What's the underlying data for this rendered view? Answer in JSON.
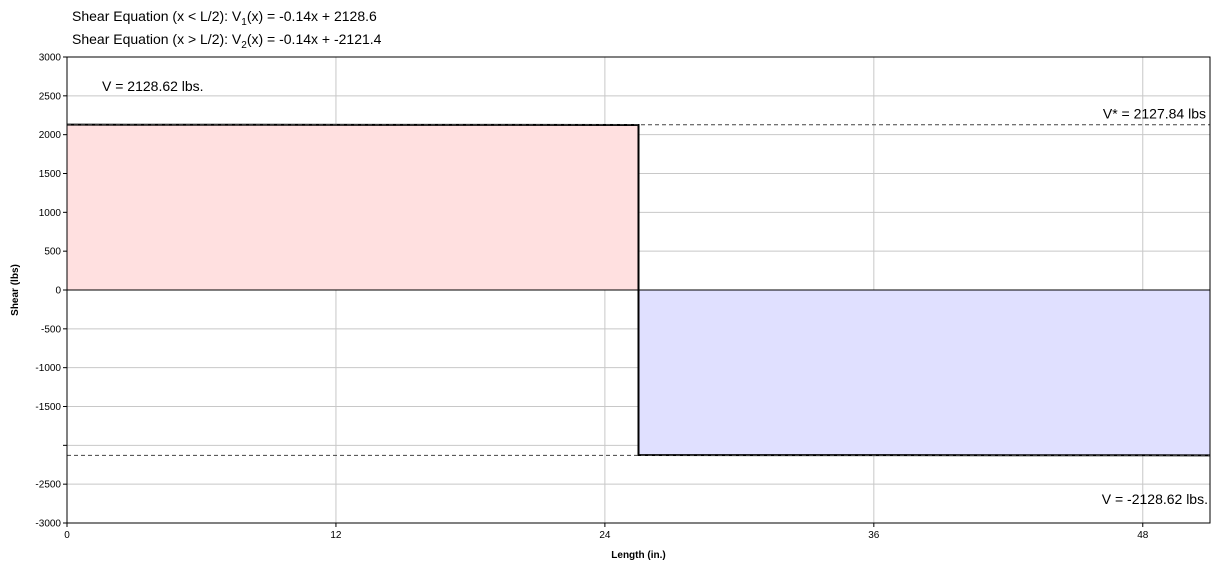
{
  "header": {
    "eq1_prefix": "Shear Equation  (x < L/2):  V",
    "eq1_sub": "1",
    "eq1_rest": "(x) = -0.14x + 2128.6",
    "eq2_prefix": "Shear Equation  (x > L/2):  V",
    "eq2_sub": "2",
    "eq2_rest": "(x) = -0.14x + -2121.4"
  },
  "chart_data": {
    "type": "area",
    "xlabel": "Length (in.)",
    "ylabel": "Shear (lbs)",
    "xlim": [
      0,
      51
    ],
    "ylim": [
      -3000,
      3000
    ],
    "x_ticks": [
      0,
      12,
      24,
      36,
      48
    ],
    "y_ticks": [
      {
        "value": 3000,
        "label": "3000"
      },
      {
        "value": 2500,
        "label": "2500"
      },
      {
        "value": 2000,
        "label": "2000"
      },
      {
        "value": 1500,
        "label": "1500"
      },
      {
        "value": 1000,
        "label": "1000"
      },
      {
        "value": 500,
        "label": "500"
      },
      {
        "value": 0,
        "label": "0"
      },
      {
        "value": -500,
        "label": "-500"
      },
      {
        "value": -1000,
        "label": "-1000"
      },
      {
        "value": -1500,
        "label": "-1500"
      },
      {
        "value": -2000,
        "label": ""
      },
      {
        "value": -2500,
        "label": "-2500"
      },
      {
        "value": -3000,
        "label": "-3000"
      }
    ],
    "grid": true,
    "series": [
      {
        "x": [
          0,
          25.5
        ],
        "y": [
          2128.6,
          2125.0
        ],
        "color": "#ffe0e0"
      },
      {
        "x": [
          25.5,
          51
        ],
        "y": [
          -2125.0,
          -2128.6
        ],
        "color": "#e0e0ff"
      }
    ],
    "reference_lines": [
      {
        "value": 2127.84,
        "style": "dashed"
      },
      {
        "value": -2128.62,
        "style": "dashed"
      }
    ],
    "annotations": [
      {
        "text": "V = 2128.62 lbs.",
        "position": "top-left"
      },
      {
        "text": "V* = 2127.84 lbs",
        "position": "upper-right"
      },
      {
        "text": "V = -2128.62 lbs.",
        "position": "bottom-right"
      }
    ]
  }
}
